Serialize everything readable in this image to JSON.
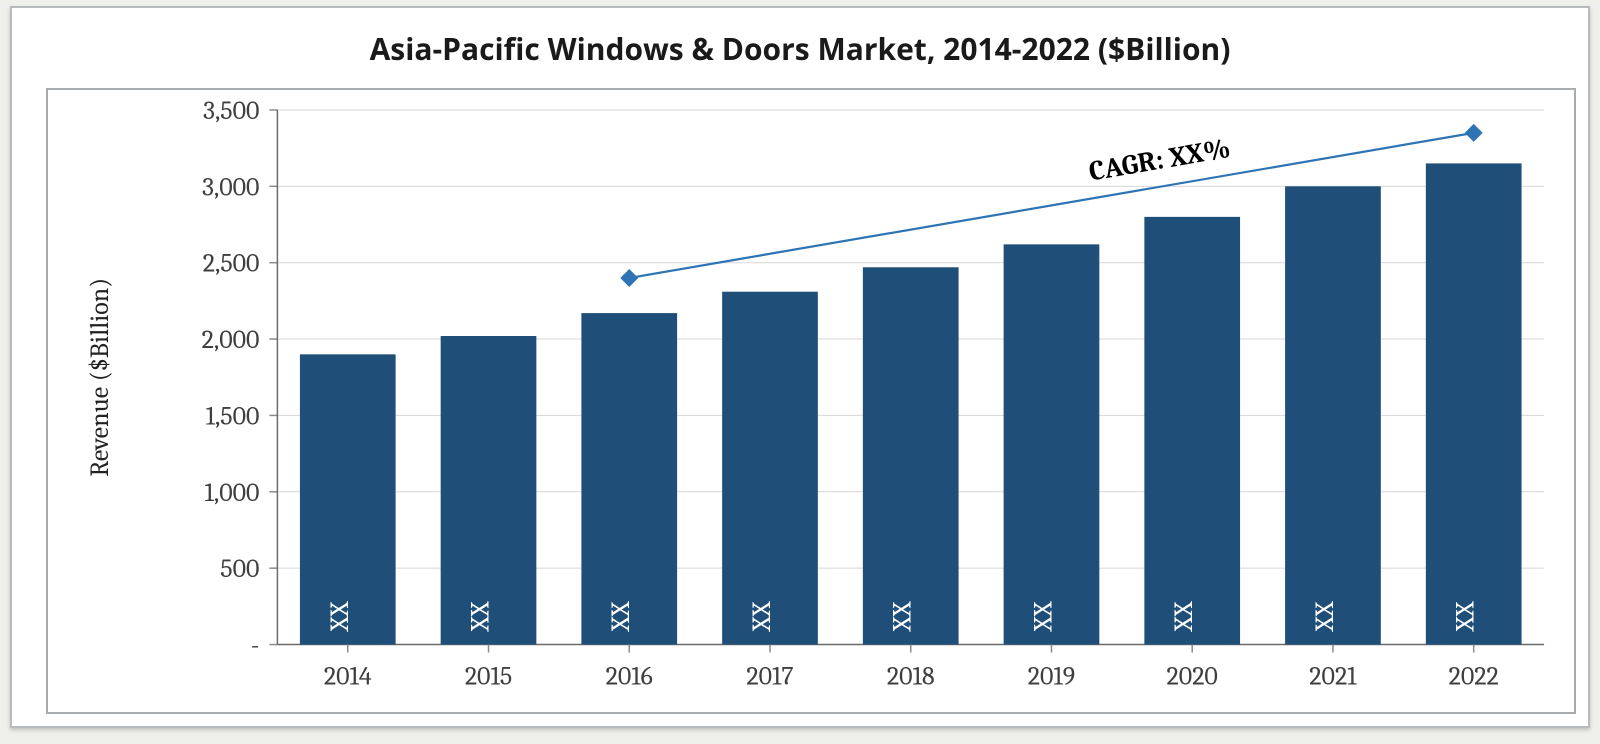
{
  "chart": {
    "type": "bar",
    "title": "Asia-Pacific Windows & Doors Market, 2014-2022 ($Billion)",
    "title_fontsize": 30,
    "title_color": "#1a1a1a",
    "background_color": "#ffffff",
    "outer_border_color": "#b8bbbe",
    "inner_border_color": "#a9acaf",
    "categories": [
      "2014",
      "2015",
      "2016",
      "2017",
      "2018",
      "2019",
      "2020",
      "2021",
      "2022"
    ],
    "values": [
      1900,
      2020,
      2170,
      2310,
      2470,
      2620,
      2800,
      3000,
      3150
    ],
    "bar_labels": [
      "XX",
      "XX",
      "XX",
      "XX",
      "XX",
      "XX",
      "XX",
      "XX",
      "XX"
    ],
    "bar_label_color": "#ffffff",
    "bar_label_fontsize": 26,
    "bar_color": "#1f4e79",
    "bar_width": 0.68,
    "ylabel": "Revenue ($Billion)",
    "ylabel_fontsize": 26,
    "ylim": [
      0,
      3500
    ],
    "ytick_step": 500,
    "ytick_labels": [
      "-",
      "500",
      "1,000",
      "1,500",
      "2,000",
      "2,500",
      "3,000",
      "3,500"
    ],
    "tick_fontsize": 26,
    "tick_color": "#3f3f3f",
    "axis_color": "#6b6b6b",
    "gridline_color": "#d7d8d6",
    "tickmark_color": "#8a8a8a",
    "xlabel_fontsize": 26,
    "cagr": {
      "text": "CAGR: XX%",
      "text_fontsize": 28,
      "text_color": "#000000",
      "line_color": "#2e74b5",
      "line_width": 2.2,
      "marker_color": "#2e74b5",
      "marker_size": 9,
      "p1": {
        "cat_index": 2,
        "y": 2400
      },
      "p2": {
        "cat_index": 8,
        "y": 3350
      }
    }
  }
}
